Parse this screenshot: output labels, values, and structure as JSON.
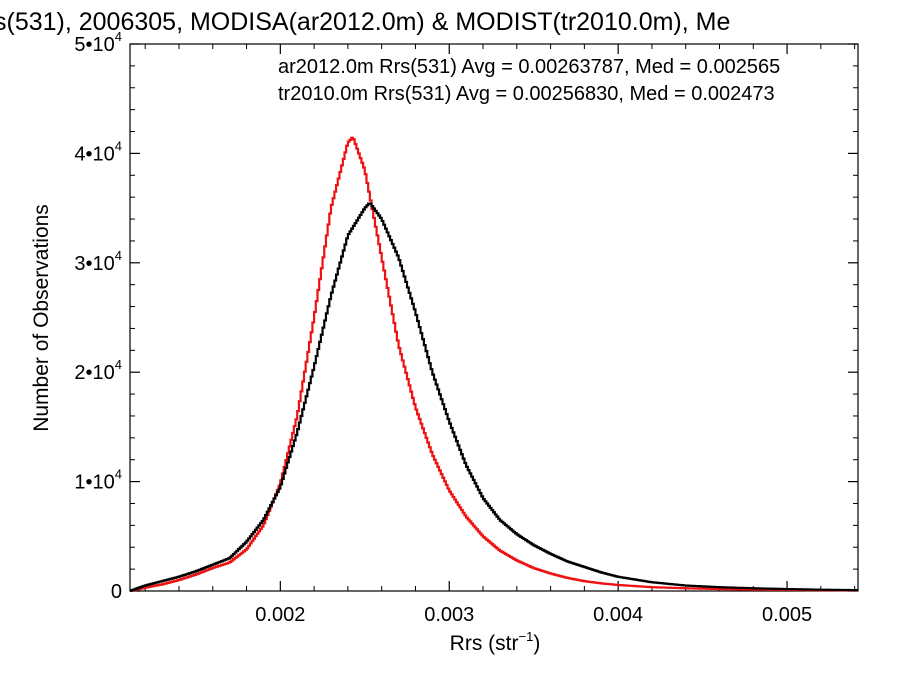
{
  "chart_data": {
    "type": "line",
    "title": "s(531), 2006305, MODISA(ar2012.0m) & MODIST(tr2010.0m), Me",
    "xlabel": "Rrs (str",
    "xlabel_sup": "−1",
    "xlabel_close": ")",
    "ylabel": "Number of Observations",
    "xlim": [
      0.00111,
      0.00542
    ],
    "ylim": [
      0,
      50000
    ],
    "x_ticks": [
      {
        "value": 0.002,
        "label": "0.002"
      },
      {
        "value": 0.003,
        "label": "0.003"
      },
      {
        "value": 0.004,
        "label": "0.004"
      },
      {
        "value": 0.005,
        "label": "0.005"
      }
    ],
    "y_ticks": [
      {
        "value": 0,
        "base": "0",
        "exp": ""
      },
      {
        "value": 10000,
        "base": "1•10",
        "exp": "4"
      },
      {
        "value": 20000,
        "base": "2•10",
        "exp": "4"
      },
      {
        "value": 30000,
        "base": "3•10",
        "exp": "4"
      },
      {
        "value": 40000,
        "base": "4•10",
        "exp": "4"
      },
      {
        "value": 50000,
        "base": "5•10",
        "exp": "4"
      }
    ],
    "annotations": [
      {
        "text": "ar2012.0m Rrs(531) Avg = 0.00263787, Med = 0.002565",
        "color": "#000000"
      },
      {
        "text": "tr2010.0m Rrs(531) Avg = 0.00256830, Med = 0.002473",
        "color": "#ee1111"
      }
    ],
    "series": [
      {
        "color": "#000000",
        "x": [
          0.00111,
          0.0012,
          0.0013,
          0.0014,
          0.0015,
          0.0016,
          0.0017,
          0.0018,
          0.0019,
          0.002,
          0.0021,
          0.0022,
          0.0023,
          0.0024,
          0.0025,
          0.00253,
          0.0026,
          0.0027,
          0.0028,
          0.0029,
          0.003,
          0.0031,
          0.0032,
          0.0033,
          0.0034,
          0.0035,
          0.0036,
          0.0037,
          0.0038,
          0.0039,
          0.004,
          0.0042,
          0.0044,
          0.0046,
          0.0048,
          0.005,
          0.0052,
          0.00542
        ],
        "y": [
          0,
          500,
          900,
          1300,
          1800,
          2400,
          3000,
          4500,
          6500,
          9500,
          14500,
          20500,
          27000,
          32500,
          35000,
          35500,
          34000,
          30500,
          25500,
          20000,
          15500,
          11500,
          8500,
          6500,
          5200,
          4200,
          3400,
          2700,
          2200,
          1700,
          1300,
          800,
          500,
          350,
          250,
          180,
          120,
          80
        ]
      },
      {
        "color": "#ee1111",
        "x": [
          0.00111,
          0.0012,
          0.0013,
          0.0014,
          0.0015,
          0.0016,
          0.0017,
          0.0018,
          0.0019,
          0.002,
          0.0021,
          0.0022,
          0.0023,
          0.0024,
          0.00243,
          0.0025,
          0.0026,
          0.0027,
          0.0028,
          0.0029,
          0.003,
          0.0031,
          0.0032,
          0.0033,
          0.0034,
          0.0035,
          0.0036,
          0.0037,
          0.0038,
          0.0039,
          0.004,
          0.0042,
          0.0044,
          0.0046,
          0.0048,
          0.005,
          0.0052,
          0.00542
        ],
        "y": [
          0,
          300,
          600,
          1000,
          1500,
          2100,
          2600,
          3800,
          6000,
          9800,
          16000,
          25000,
          35000,
          41000,
          41500,
          38500,
          30500,
          22500,
          16800,
          12500,
          9200,
          6800,
          5000,
          3700,
          2800,
          2100,
          1600,
          1200,
          900,
          700,
          550,
          350,
          250,
          180,
          130,
          100,
          70,
          50
        ]
      }
    ]
  }
}
